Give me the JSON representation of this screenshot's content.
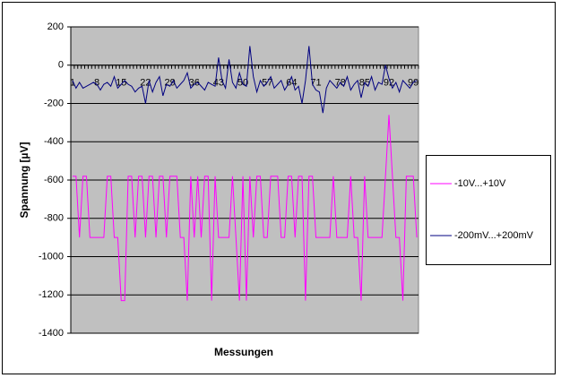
{
  "chart_data": {
    "type": "line",
    "xlabel": "Messungen",
    "ylabel": "Spannung [µV]",
    "categories": [
      "1",
      null,
      null,
      null,
      null,
      null,
      null,
      "8",
      null,
      null,
      null,
      null,
      null,
      null,
      "15",
      null,
      null,
      null,
      null,
      null,
      null,
      "22",
      null,
      null,
      null,
      null,
      null,
      null,
      "29",
      null,
      null,
      null,
      null,
      null,
      null,
      "36",
      null,
      null,
      null,
      null,
      null,
      null,
      "43",
      null,
      null,
      null,
      null,
      null,
      null,
      "50",
      null,
      null,
      null,
      null,
      null,
      null,
      "57",
      null,
      null,
      null,
      null,
      null,
      null,
      "64",
      null,
      null,
      null,
      null,
      null,
      null,
      "71",
      null,
      null,
      null,
      null,
      null,
      null,
      "78",
      null,
      null,
      null,
      null,
      null,
      null,
      "85",
      null,
      null,
      null,
      null,
      null,
      null,
      "92",
      null,
      null,
      null,
      null,
      null,
      null,
      "99",
      null
    ],
    "series": [
      {
        "name": "-10V...+10V",
        "color": "#ff00ff",
        "values": [
          -580,
          -580,
          -900,
          -580,
          -580,
          -900,
          -900,
          -900,
          -900,
          -900,
          -580,
          -580,
          -900,
          -900,
          -1230,
          -1230,
          -580,
          -580,
          -900,
          -580,
          -580,
          -900,
          -580,
          -580,
          -900,
          -580,
          -580,
          -900,
          -580,
          -580,
          -580,
          -900,
          -900,
          -1230,
          -580,
          -900,
          -580,
          -900,
          -580,
          -580,
          -1230,
          -580,
          -900,
          -900,
          -900,
          -900,
          -580,
          -900,
          -1230,
          -580,
          -1230,
          -580,
          -900,
          -580,
          -580,
          -900,
          -900,
          -580,
          -580,
          -580,
          -900,
          -900,
          -580,
          -580,
          -900,
          -580,
          -580,
          -1230,
          -580,
          -580,
          -900,
          -900,
          -900,
          -900,
          -900,
          -580,
          -900,
          -900,
          -900,
          -900,
          -580,
          -900,
          -900,
          -1230,
          -580,
          -900,
          -900,
          -900,
          -900,
          -900,
          -580,
          -260,
          -580,
          -900,
          -900,
          -1230,
          -580,
          -580,
          -580,
          -900
        ]
      },
      {
        "name": "-200mV...+200mV",
        "color": "#000080",
        "values": [
          -80,
          -120,
          -90,
          -120,
          -110,
          -100,
          -90,
          -100,
          -130,
          -100,
          -90,
          -110,
          -60,
          -120,
          -100,
          -80,
          -100,
          -110,
          -140,
          -120,
          -110,
          -200,
          -80,
          -140,
          -90,
          -60,
          -160,
          -100,
          -110,
          -80,
          -120,
          -100,
          -80,
          -40,
          -120,
          -100,
          -90,
          -110,
          -130,
          -90,
          -100,
          -110,
          40,
          -80,
          -120,
          30,
          -90,
          -120,
          -40,
          -100,
          -110,
          100,
          -60,
          -140,
          -80,
          -110,
          -90,
          -60,
          -120,
          -100,
          -80,
          -130,
          -100,
          -60,
          -130,
          -110,
          -200,
          -80,
          100,
          -100,
          -130,
          -140,
          -250,
          -120,
          -80,
          -100,
          -120,
          -90,
          -110,
          -60,
          -130,
          -100,
          -80,
          -170,
          -90,
          -110,
          -60,
          -130,
          -90,
          -100,
          0,
          -70,
          -120,
          -90,
          -140,
          -80,
          -100,
          -120,
          -90,
          -80
        ]
      }
    ],
    "ylim": [
      -1400,
      200
    ],
    "yticks": [
      -1400,
      -1200,
      -1000,
      -800,
      -600,
      -400,
      -200,
      0,
      200
    ],
    "grid": true,
    "legend": "right"
  }
}
